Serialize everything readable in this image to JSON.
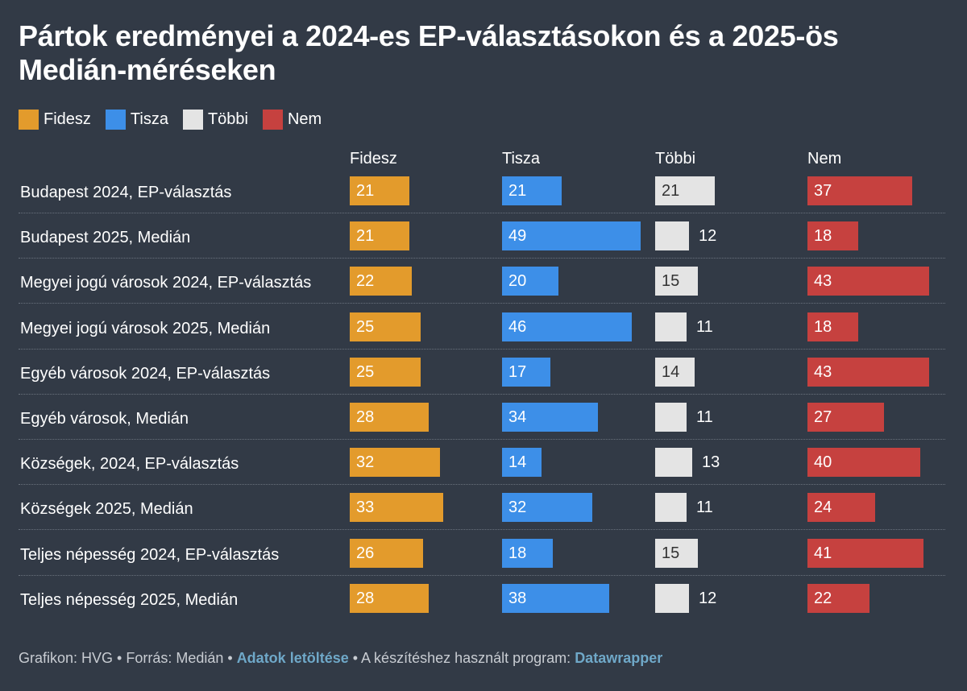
{
  "chart_data": {
    "type": "bar",
    "title": "Pártok eredményei a 2024-es EP-választásokon és a 2025-ös Medián-méréseken",
    "series_labels": [
      "Fidesz",
      "Tisza",
      "Többi",
      "Nem"
    ],
    "categories": [
      "Budapest 2024, EP-választás",
      "Budapest 2025, Medián",
      "Megyei jogú városok 2024, EP-választás",
      "Megyei jogú városok 2025, Medián",
      "Egyéb városok 2024, EP-választás",
      "Egyéb városok, Medián",
      "Községek, 2024, EP-választás",
      "Községek 2025, Medián",
      "Teljes népesség 2024, EP-választás",
      "Teljes népesség 2025, Medián"
    ],
    "series": [
      {
        "name": "Fidesz",
        "color": "#e39b2c",
        "values": [
          21,
          21,
          22,
          25,
          25,
          28,
          32,
          33,
          26,
          28
        ]
      },
      {
        "name": "Tisza",
        "color": "#3d8fe8",
        "values": [
          21,
          49,
          20,
          46,
          17,
          34,
          14,
          32,
          18,
          38
        ]
      },
      {
        "name": "Többi",
        "color": "#e4e4e4",
        "values": [
          21,
          12,
          15,
          11,
          14,
          11,
          13,
          11,
          15,
          12
        ]
      },
      {
        "name": "Nem",
        "color": "#c6413f",
        "values": [
          37,
          18,
          43,
          18,
          43,
          27,
          40,
          24,
          41,
          22
        ]
      }
    ]
  },
  "legend": [
    {
      "label": "Fidesz",
      "color": "#e39b2c"
    },
    {
      "label": "Tisza",
      "color": "#3d8fe8"
    },
    {
      "label": "Többi",
      "color": "#e4e4e4"
    },
    {
      "label": "Nem",
      "color": "#c6413f"
    }
  ],
  "footer": {
    "part1": "Grafikon: HVG • Forrás: Medián • ",
    "link1": "Adatok letöltése",
    "part2": " • A készítéshez használt program: ",
    "link2": "Datawrapper"
  }
}
